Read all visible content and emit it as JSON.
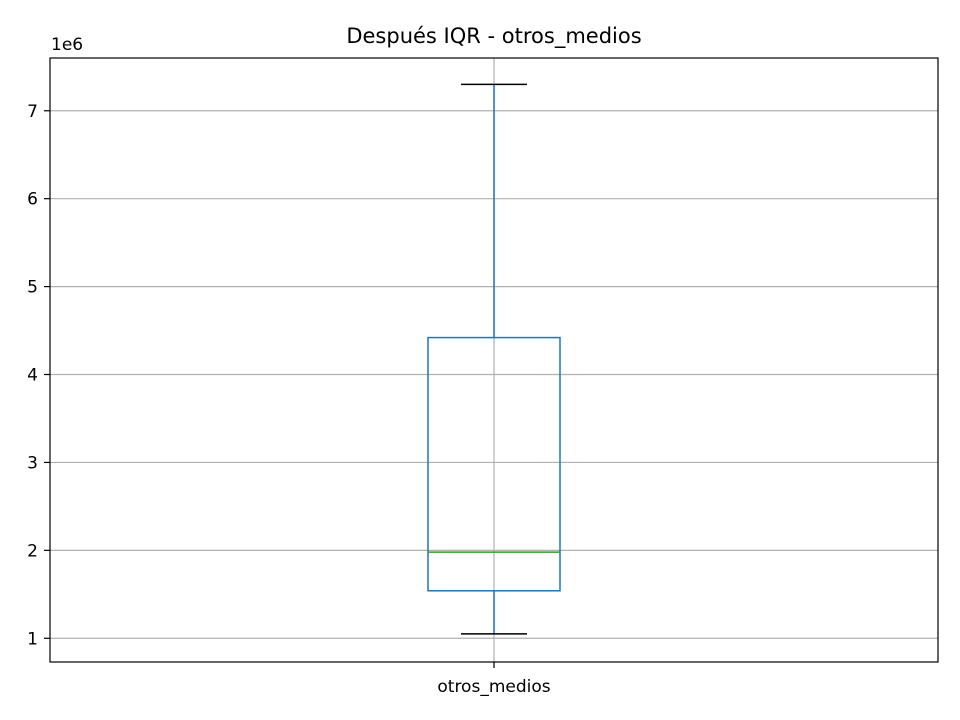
{
  "chart_data": {
    "type": "box",
    "title": "Después IQR - otros_medios",
    "xlabel": "",
    "ylabel": "",
    "y_offset_label": "1e6",
    "categories": [
      "otros_medios"
    ],
    "boxes": [
      {
        "category": "otros_medios",
        "whisker_low": 1050000,
        "q1": 1540000,
        "median": 1980000,
        "q3": 4420000,
        "whisker_high": 7300000
      }
    ],
    "ylim": [
      730000,
      7600000
    ],
    "yticks": [
      1000000,
      2000000,
      3000000,
      4000000,
      5000000,
      6000000,
      7000000
    ],
    "ytick_labels": [
      "1",
      "2",
      "3",
      "4",
      "5",
      "6",
      "7"
    ],
    "grid": true,
    "colors": {
      "box": "#1f77b4",
      "median": "#2ca02c",
      "whisker_cap": "#000000",
      "grid": "#b0b0b0",
      "axes": "#000000"
    }
  }
}
